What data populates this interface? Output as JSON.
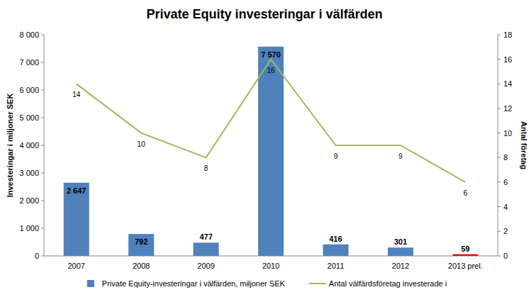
{
  "chart_data": {
    "type": "bar",
    "title": "Private Equity investeringar i välfärden",
    "ylabel": "Investeringar i miljoner SEK",
    "y2label": "Antal företag",
    "categories": [
      "2007",
      "2008",
      "2009",
      "2010",
      "2011",
      "2012",
      "2013 prel."
    ],
    "series": [
      {
        "name": "Private Equity-investeringar i välfärden, miljoner SEK",
        "type": "bar",
        "color": "#4f81bd",
        "colors": [
          "#4f81bd",
          "#4f81bd",
          "#4f81bd",
          "#4f81bd",
          "#4f81bd",
          "#4f81bd",
          "#ff0000"
        ],
        "values": [
          2647,
          792,
          477,
          7570,
          416,
          301,
          59
        ],
        "value_labels": [
          "2 647",
          "792",
          "477",
          "7 570",
          "416",
          "301",
          "59"
        ]
      },
      {
        "name": "Antal välfärdsföretag investerade i",
        "type": "line",
        "color": "#9bbb59",
        "axis": "y2",
        "values": [
          14,
          10,
          8,
          16,
          9,
          9,
          6
        ]
      }
    ],
    "ylim": [
      0,
      8000
    ],
    "yticks": [
      0,
      {
        "value": 1000,
        "label": "1 000"
      },
      {
        "value": 2000,
        "label": "2 000"
      },
      {
        "value": 3000,
        "label": "3 000"
      },
      {
        "value": 4000,
        "label": "4 000"
      },
      {
        "value": 5000,
        "label": "5 000"
      },
      {
        "value": 6000,
        "label": "6 000"
      },
      {
        "value": 7000,
        "label": "7 000"
      },
      {
        "value": 8000,
        "label": "8 000"
      }
    ],
    "y2lim": [
      0,
      18
    ],
    "y2ticks": [
      0,
      2,
      4,
      6,
      8,
      10,
      12,
      14,
      16,
      18
    ],
    "grid": false,
    "data_labels": true,
    "legend": "bottom"
  }
}
